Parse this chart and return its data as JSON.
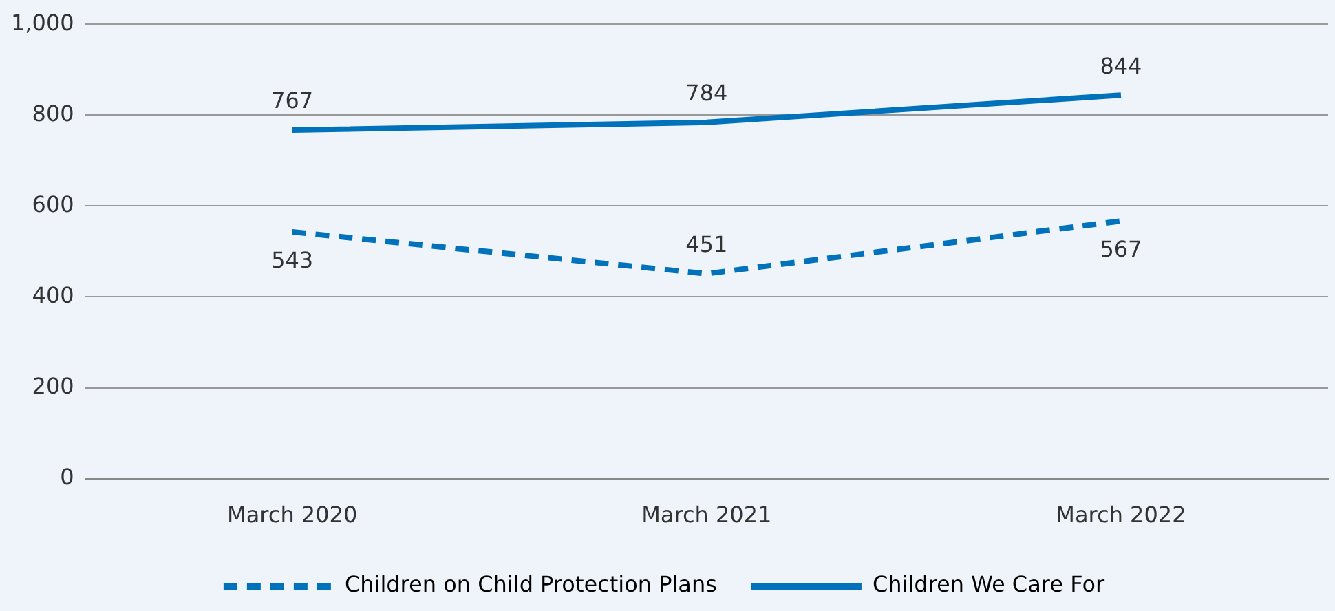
{
  "chart_data": {
    "type": "line",
    "categories": [
      "March 2020",
      "March 2021",
      "March 2022"
    ],
    "series": [
      {
        "name": "Children on Child Protection Plans",
        "color": "#0072bc",
        "values": [
          543,
          451,
          567
        ],
        "line_style": "dashed"
      },
      {
        "name": "Children We Care For",
        "color": "#0072bc",
        "values": [
          767,
          784,
          844
        ],
        "line_style": "solid"
      }
    ],
    "ylim": [
      0,
      1000
    ],
    "yticks": [
      0,
      200,
      400,
      600,
      800,
      {
        "value": 1000,
        "label": "1,000"
      }
    ],
    "grid": "y",
    "legend": "bottom",
    "data_labels": true,
    "marker": "none"
  }
}
